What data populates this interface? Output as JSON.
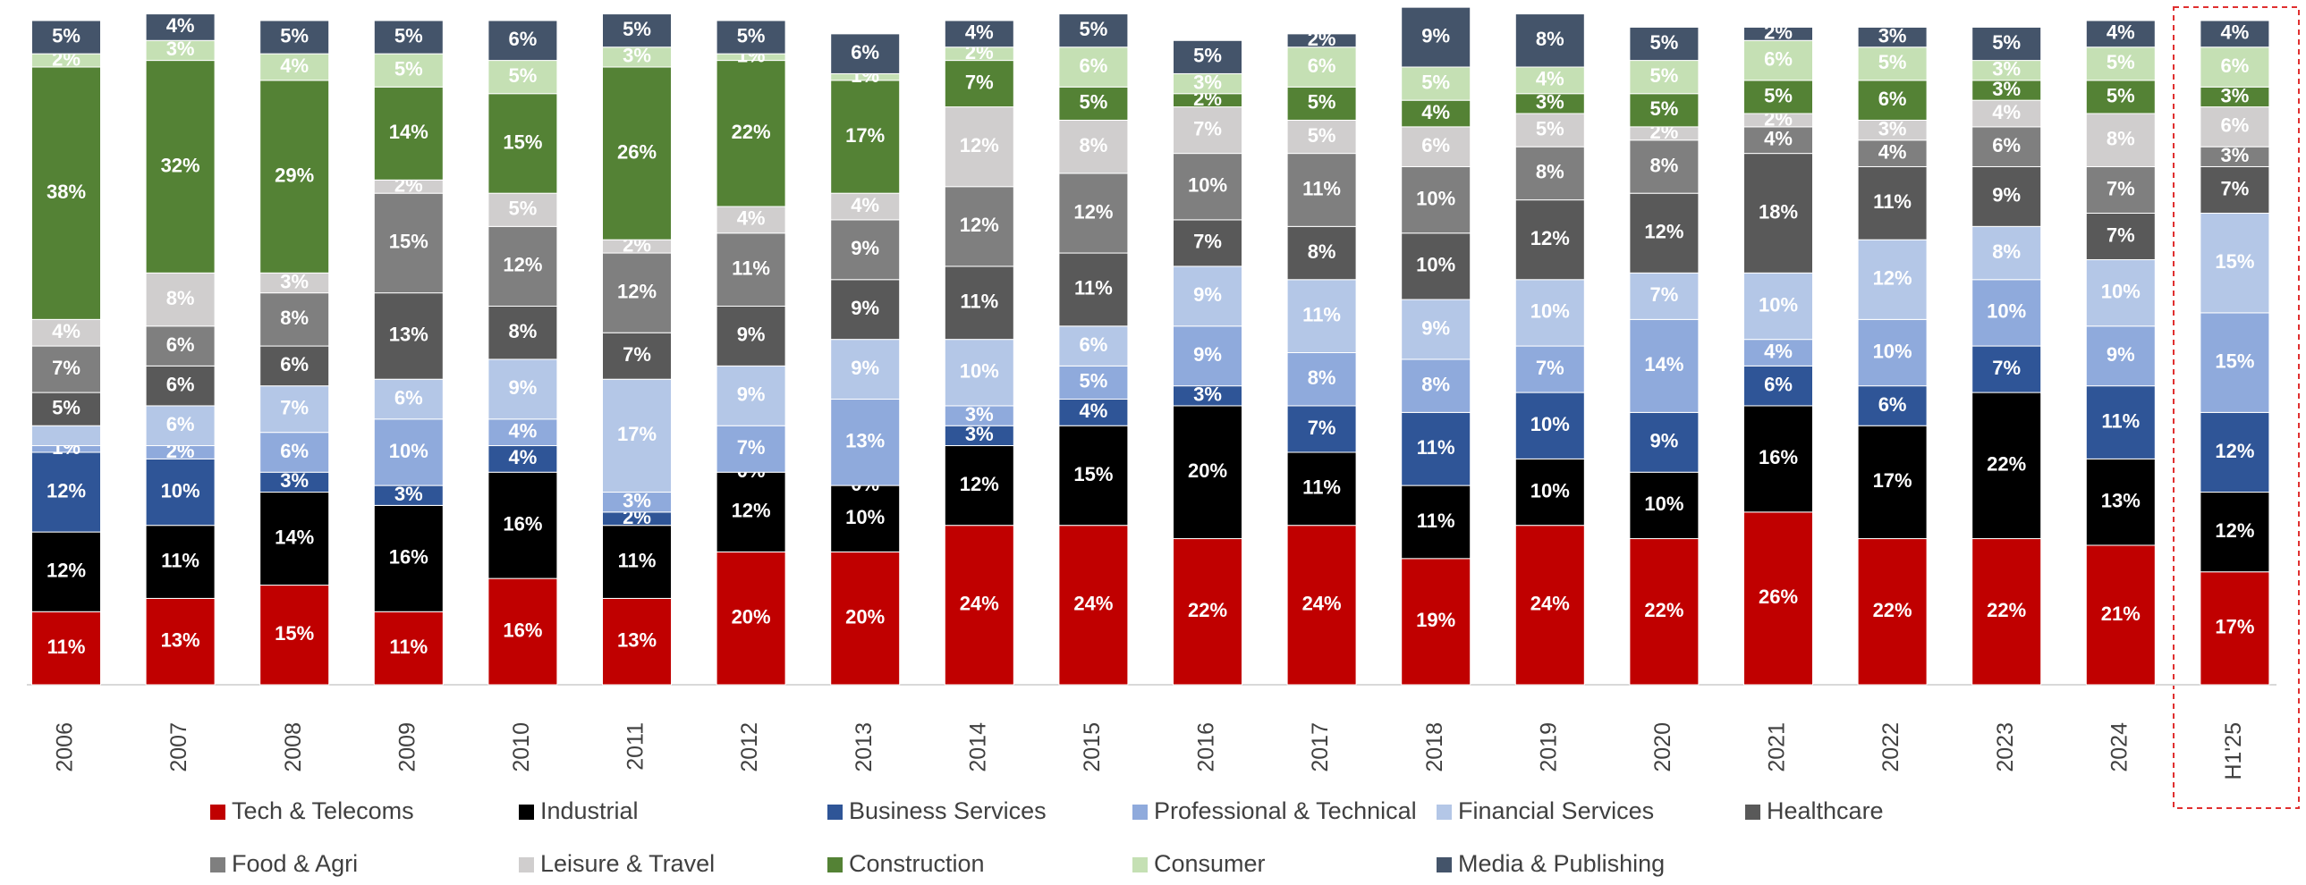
{
  "chart_data": {
    "type": "stacked_bar",
    "categories": [
      "2006",
      "2007",
      "2008",
      "2009",
      "2010",
      "2011",
      "2012",
      "2013",
      "2014",
      "2015",
      "2016",
      "2017",
      "2018",
      "2019",
      "2020",
      "2021",
      "2022",
      "2023",
      "2024",
      "H1'25"
    ],
    "ylim": [
      0,
      100
    ],
    "series": [
      {
        "name": "Tech & Telecoms",
        "color": "#c00000",
        "values": [
          11,
          13,
          15,
          11,
          16,
          13,
          20,
          20,
          24,
          24,
          22,
          24,
          19,
          24,
          22,
          26,
          22,
          22,
          21,
          17
        ],
        "value_labels": [
          "11%",
          "13%",
          "15%",
          "11%",
          "16%",
          "13%",
          "20%",
          "20%",
          "24%",
          "24%",
          "22%",
          "24%",
          "19%",
          "24%",
          "22%",
          "26%",
          "22%",
          "22%",
          "21%",
          "17%"
        ]
      },
      {
        "name": "Industrial",
        "color": "#000000",
        "values": [
          12,
          11,
          14,
          16,
          16,
          11,
          12,
          10,
          12,
          15,
          20,
          11,
          11,
          10,
          10,
          16,
          17,
          22,
          13,
          12
        ],
        "value_labels": [
          "12%",
          "11%",
          "14%",
          "16%",
          "16%",
          "11%",
          "12%",
          "10%",
          "12%",
          "15%",
          "20%",
          "11%",
          "11%",
          "10%",
          "10%",
          "16%",
          "17%",
          "22%",
          "13%",
          "12%"
        ]
      },
      {
        "name": "Business Services",
        "color": "#2f5597",
        "values": [
          12,
          10,
          3,
          3,
          4,
          2,
          0,
          0,
          3,
          4,
          3,
          7,
          11,
          10,
          9,
          6,
          6,
          7,
          11,
          12
        ],
        "value_labels": [
          "12%",
          "10%",
          "3%",
          "3%",
          "4%",
          "2%",
          "0%",
          "0%",
          "3%",
          "4%",
          "3%",
          "7%",
          "11%",
          "10%",
          "9%",
          "6%",
          "6%",
          "7%",
          "11%",
          "12%"
        ]
      },
      {
        "name": "Professional & Technical",
        "color": "#8faadc",
        "values": [
          1,
          2,
          6,
          10,
          4,
          3,
          7,
          13,
          3,
          5,
          9,
          8,
          8,
          7,
          14,
          4,
          10,
          10,
          9,
          15
        ],
        "value_labels": [
          "1%",
          "2%",
          "6%",
          "10%",
          "4%",
          "3%",
          "7%",
          "13%",
          "3%",
          "5%",
          "9%",
          "8%",
          "8%",
          "7%",
          "14%",
          "4%",
          "10%",
          "10%",
          "9%",
          "15%"
        ]
      },
      {
        "name": "Financial Services",
        "color": "#b4c7e7",
        "values": [
          3,
          6,
          7,
          6,
          9,
          17,
          9,
          9,
          10,
          6,
          9,
          11,
          9,
          10,
          7,
          10,
          12,
          8,
          10,
          15
        ],
        "value_labels": [
          null,
          "6%",
          "7%",
          "6%",
          "9%",
          "17%",
          "9%",
          "9%",
          "10%",
          "6%",
          "9%",
          "11%",
          "9%",
          "10%",
          "7%",
          "10%",
          "12%",
          "8%",
          "10%",
          "15%"
        ]
      },
      {
        "name": "Healthcare",
        "color": "#595959",
        "values": [
          5,
          6,
          6,
          13,
          8,
          7,
          9,
          9,
          11,
          11,
          7,
          8,
          10,
          12,
          12,
          18,
          11,
          9,
          7,
          7
        ],
        "value_labels": [
          "5%",
          "6%",
          "6%",
          "13%",
          "8%",
          "7%",
          "9%",
          "9%",
          "11%",
          "11%",
          "7%",
          "8%",
          "10%",
          "12%",
          "12%",
          "18%",
          "11%",
          "9%",
          "7%",
          "7%"
        ]
      },
      {
        "name": "Food & Agri",
        "color": "#7f7f7f",
        "values": [
          7,
          6,
          8,
          15,
          12,
          12,
          11,
          9,
          12,
          12,
          10,
          11,
          10,
          8,
          8,
          4,
          4,
          6,
          7,
          3
        ],
        "value_labels": [
          "7%",
          "6%",
          "8%",
          "15%",
          "12%",
          "12%",
          "11%",
          "9%",
          "12%",
          "12%",
          "10%",
          "11%",
          "10%",
          "8%",
          "8%",
          "4%",
          "4%",
          "6%",
          "7%",
          "3%"
        ]
      },
      {
        "name": "Leisure & Travel",
        "color": "#d0cece",
        "values": [
          4,
          8,
          3,
          2,
          5,
          2,
          4,
          4,
          12,
          8,
          7,
          5,
          6,
          5,
          2,
          2,
          3,
          4,
          8,
          6
        ],
        "value_labels": [
          "4%",
          "8%",
          "3%",
          "2%",
          "5%",
          "2%",
          "4%",
          "4%",
          "12%",
          "8%",
          "7%",
          "5%",
          "6%",
          "5%",
          "2%",
          "2%",
          "3%",
          "4%",
          "8%",
          "6%"
        ]
      },
      {
        "name": "Construction",
        "color": "#548235",
        "values": [
          38,
          32,
          29,
          14,
          15,
          26,
          22,
          17,
          7,
          5,
          2,
          5,
          4,
          3,
          5,
          5,
          6,
          3,
          5,
          3
        ],
        "value_labels": [
          "38%",
          "32%",
          "29%",
          "14%",
          "15%",
          "26%",
          "22%",
          "17%",
          "7%",
          "5%",
          "2%",
          "5%",
          "4%",
          "3%",
          "5%",
          "5%",
          "6%",
          "3%",
          "5%",
          "3%"
        ]
      },
      {
        "name": "Consumer",
        "color": "#c5e0b4",
        "values": [
          2,
          3,
          4,
          5,
          5,
          3,
          1,
          1,
          2,
          6,
          3,
          6,
          5,
          4,
          5,
          6,
          5,
          3,
          5,
          6
        ],
        "value_labels": [
          "2%",
          "3%",
          "4%",
          "5%",
          "5%",
          "3%",
          "1%",
          "1%",
          "2%",
          "6%",
          "3%",
          "6%",
          "5%",
          "4%",
          "5%",
          "6%",
          "5%",
          "3%",
          "5%",
          "6%"
        ]
      },
      {
        "name": "Media & Publishing",
        "color": "#44546a",
        "values": [
          5,
          4,
          5,
          5,
          6,
          5,
          5,
          6,
          4,
          5,
          5,
          2,
          9,
          8,
          5,
          2,
          3,
          5,
          4,
          4
        ],
        "value_labels": [
          "5%",
          "4%",
          "5%",
          "5%",
          "6%",
          "5%",
          "5%",
          "6%",
          "4%",
          "5%",
          "5%",
          "2%",
          "9%",
          "8%",
          "5%",
          "2%",
          "3%",
          "5%",
          "4%",
          "4%"
        ]
      }
    ]
  }
}
